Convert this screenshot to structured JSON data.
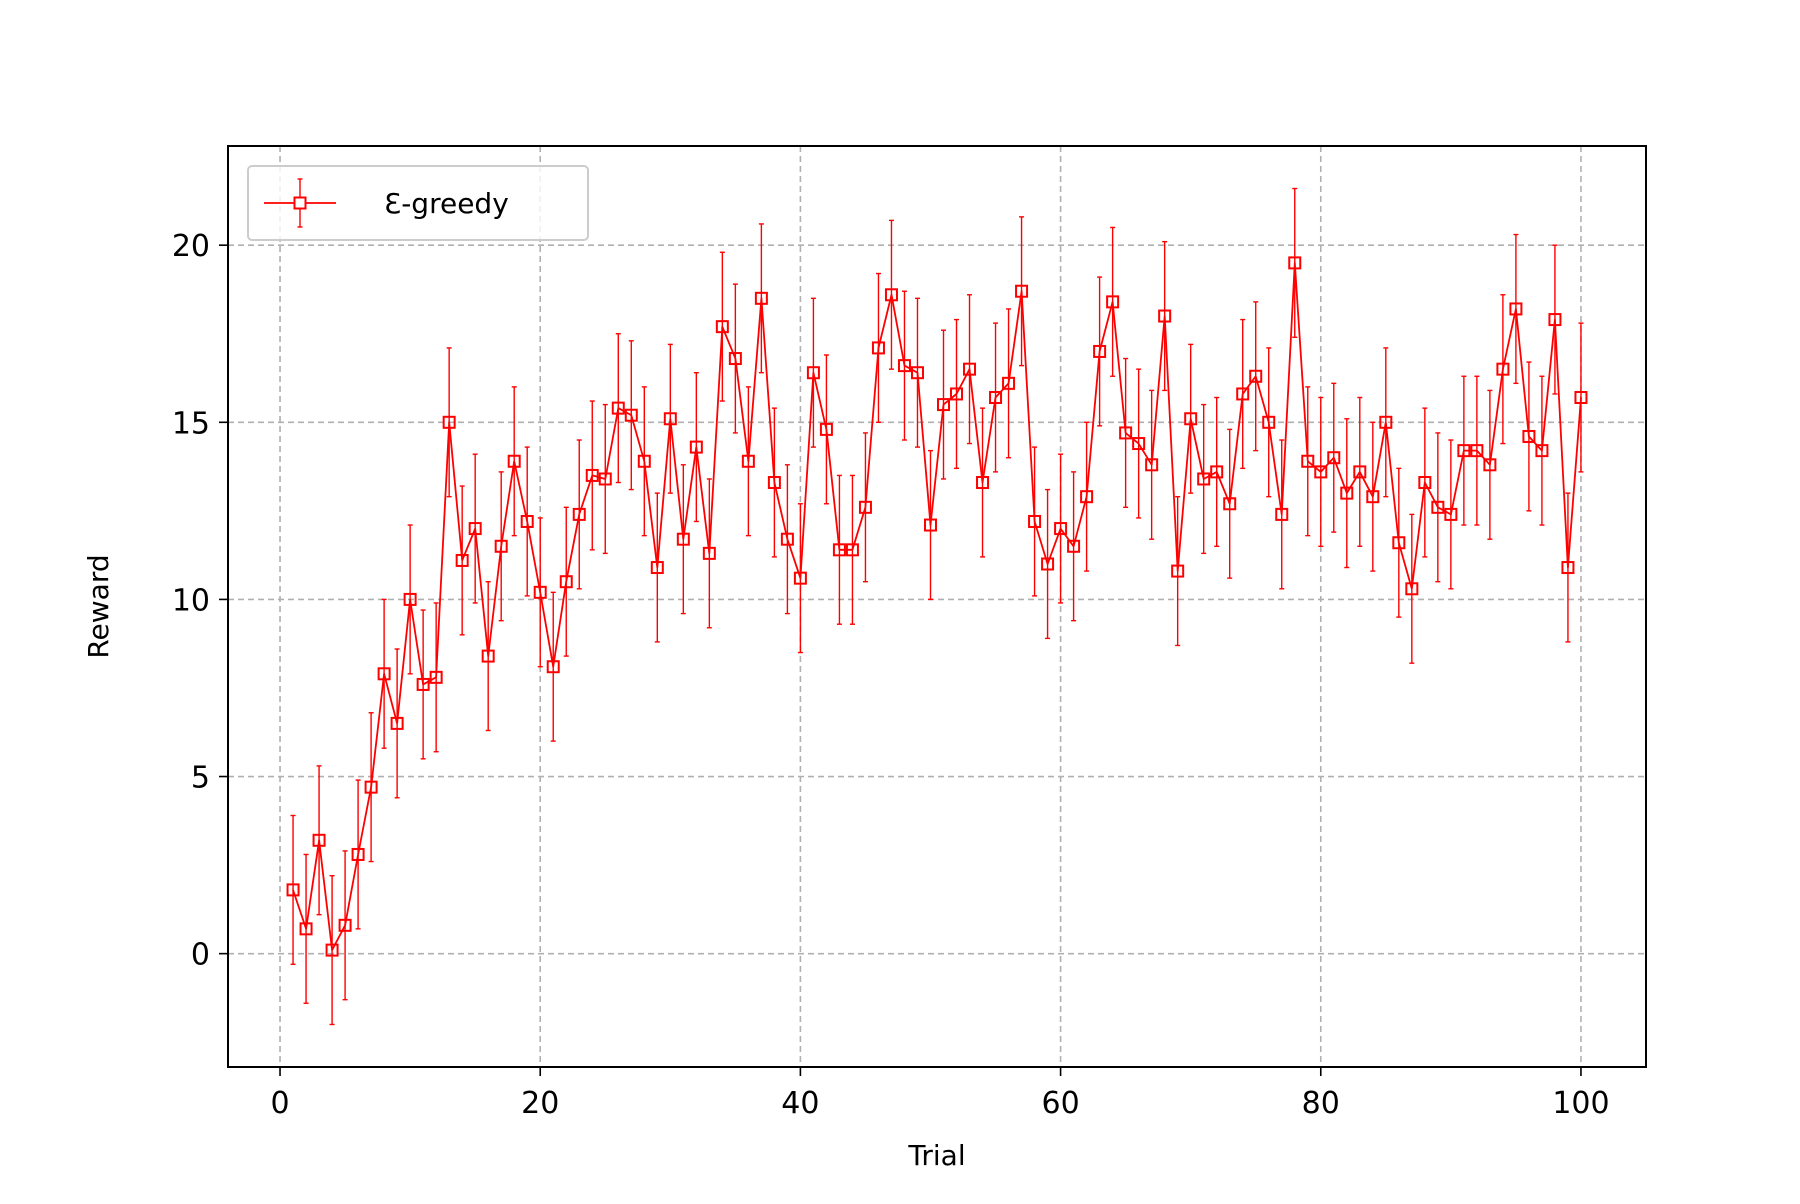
{
  "chart_data": {
    "type": "line",
    "title": "",
    "xlabel": "Trial",
    "ylabel": "Reward",
    "xlim": [
      -4,
      105
    ],
    "ylim": [
      -3.2,
      22.8
    ],
    "xticks": [
      0,
      20,
      40,
      60,
      80,
      100
    ],
    "yticks": [
      0,
      5,
      10,
      15,
      20
    ],
    "grid": true,
    "legend_position": "upper-left",
    "series": [
      {
        "name": "Ɛ-greedy",
        "color": "#ff0000",
        "marker": "square-open",
        "error_bar": 2.1,
        "x": [
          1,
          2,
          3,
          4,
          5,
          6,
          7,
          8,
          9,
          10,
          11,
          12,
          13,
          14,
          15,
          16,
          17,
          18,
          19,
          20,
          21,
          22,
          23,
          24,
          25,
          26,
          27,
          28,
          29,
          30,
          31,
          32,
          33,
          34,
          35,
          36,
          37,
          38,
          39,
          40,
          41,
          42,
          43,
          44,
          45,
          46,
          47,
          48,
          49,
          50,
          51,
          52,
          53,
          54,
          55,
          56,
          57,
          58,
          59,
          60,
          61,
          62,
          63,
          64,
          65,
          66,
          67,
          68,
          69,
          70,
          71,
          72,
          73,
          74,
          75,
          76,
          77,
          78,
          79,
          80,
          81,
          82,
          83,
          84,
          85,
          86,
          87,
          88,
          89,
          90,
          91,
          92,
          93,
          94,
          95,
          96,
          97,
          98,
          99,
          100
        ],
        "y": [
          1.8,
          0.7,
          3.2,
          0.1,
          0.8,
          2.8,
          4.7,
          7.9,
          6.5,
          10.0,
          7.6,
          7.8,
          15.0,
          11.1,
          12.0,
          8.4,
          11.5,
          13.9,
          12.2,
          10.2,
          8.1,
          10.5,
          12.4,
          13.5,
          13.4,
          15.4,
          15.2,
          13.9,
          10.9,
          15.1,
          11.7,
          14.3,
          11.3,
          17.7,
          16.8,
          13.9,
          18.5,
          13.3,
          11.7,
          10.6,
          16.4,
          14.8,
          11.4,
          11.4,
          12.6,
          17.1,
          18.6,
          16.6,
          16.4,
          12.1,
          15.5,
          15.8,
          16.5,
          13.3,
          15.7,
          16.1,
          18.7,
          12.2,
          11.0,
          12.0,
          11.5,
          12.9,
          17.0,
          18.4,
          14.7,
          14.4,
          13.8,
          18.0,
          10.8,
          15.1,
          13.4,
          13.6,
          12.7,
          15.8,
          16.3,
          15.0,
          12.4,
          19.5,
          13.9,
          13.6,
          14.0,
          13.0,
          13.6,
          12.9,
          15.0,
          11.6,
          10.3,
          13.3,
          12.6,
          12.4,
          14.2,
          14.2,
          13.8,
          16.5,
          18.2,
          14.6,
          14.2,
          17.9,
          10.9,
          15.7
        ]
      }
    ]
  }
}
